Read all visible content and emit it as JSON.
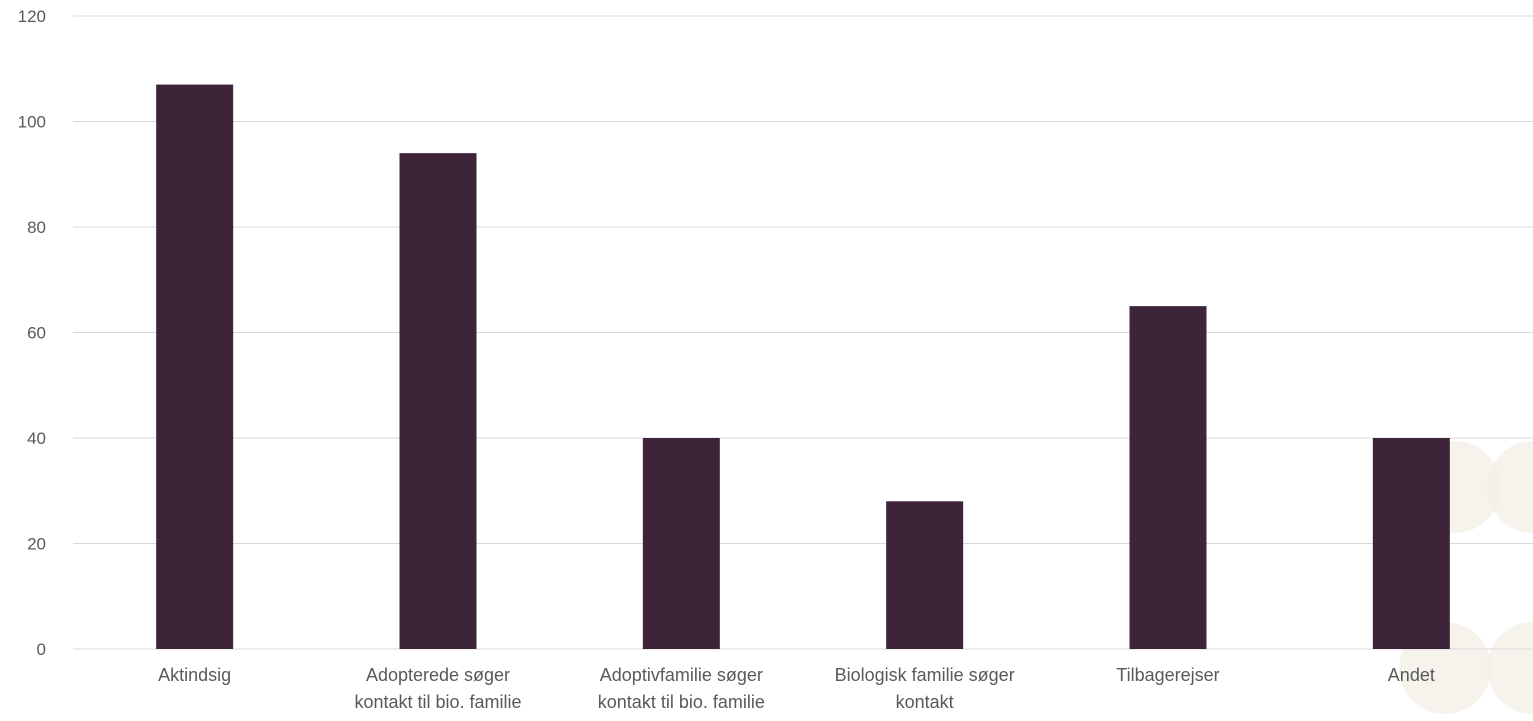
{
  "chart_data": {
    "type": "bar",
    "categories": [
      [
        "Aktindsig"
      ],
      [
        "Adopterede søger",
        "kontakt til bio. familie"
      ],
      [
        "Adoptivfamilie søger",
        "kontakt til bio. familie"
      ],
      [
        "Biologisk familie søger",
        "kontakt"
      ],
      [
        "Tilbagerejser"
      ],
      [
        "Andet"
      ]
    ],
    "values": [
      107,
      94,
      40,
      28,
      65,
      40
    ],
    "ylim": [
      0,
      120
    ],
    "yticks": [
      0,
      20,
      40,
      60,
      80,
      100,
      120
    ],
    "grid": true,
    "legend": "none",
    "title": "",
    "xlabel": "",
    "ylabel": "",
    "bar_color": "#3e2439",
    "grid_color": "#d9d9d9",
    "tick_color": "#595959"
  }
}
